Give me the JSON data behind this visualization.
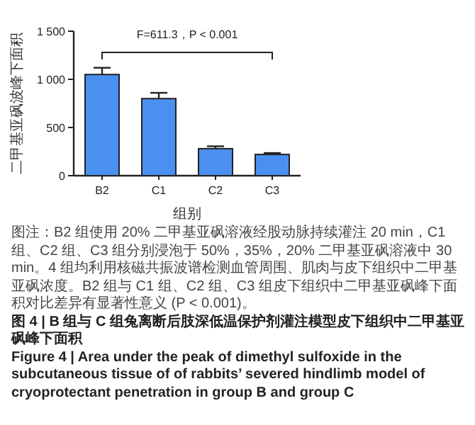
{
  "chart_data": {
    "type": "bar",
    "title": "图 4 | B 组与 C 组兔离断后肢深低温保护剂灌注模型皮下组织中二甲基亚砜峰下面积",
    "subtitle": "Figure 4 | Area under the peak of dimethyl sulfoxide in the subcutaneous tissue of of rabbits’ severed hindlimb model of cryoprotectant penetration in group B and group C",
    "xlabel": "组别",
    "ylabel": "二甲基亚砜波峰下面积",
    "categories": [
      "B2",
      "C1",
      "C2",
      "C3"
    ],
    "series": [
      {
        "color": "#4a90f0",
        "values": [
          1050,
          800,
          280,
          220
        ],
        "errors": [
          70,
          60,
          25,
          15
        ]
      }
    ],
    "ylim": [
      0,
      1500
    ],
    "yticks": [
      0,
      500,
      {
        "value": 1000,
        "label": "1 000"
      },
      {
        "value": 1500,
        "label": "1 500"
      }
    ],
    "annotations": [
      "F=611.3，P < 0.001",
      "图注：B2 组使用 20% 二甲基亚砜溶液经股动脉持续灌注 20 min，C1 组、C2 组、C3 组分别浸泡于 50%，35%，20% 二甲基亚砜溶液中 30 min。4 组均利用核磁共振波谱检测血管周围、肌肉与皮下组织中二甲基亚砜浓度。B2 组与 C1 组、C2 组、C3 组皮下组织中二甲基亚砜峰下面积对比差异有显著性意义 (P < 0.001)。"
    ]
  }
}
